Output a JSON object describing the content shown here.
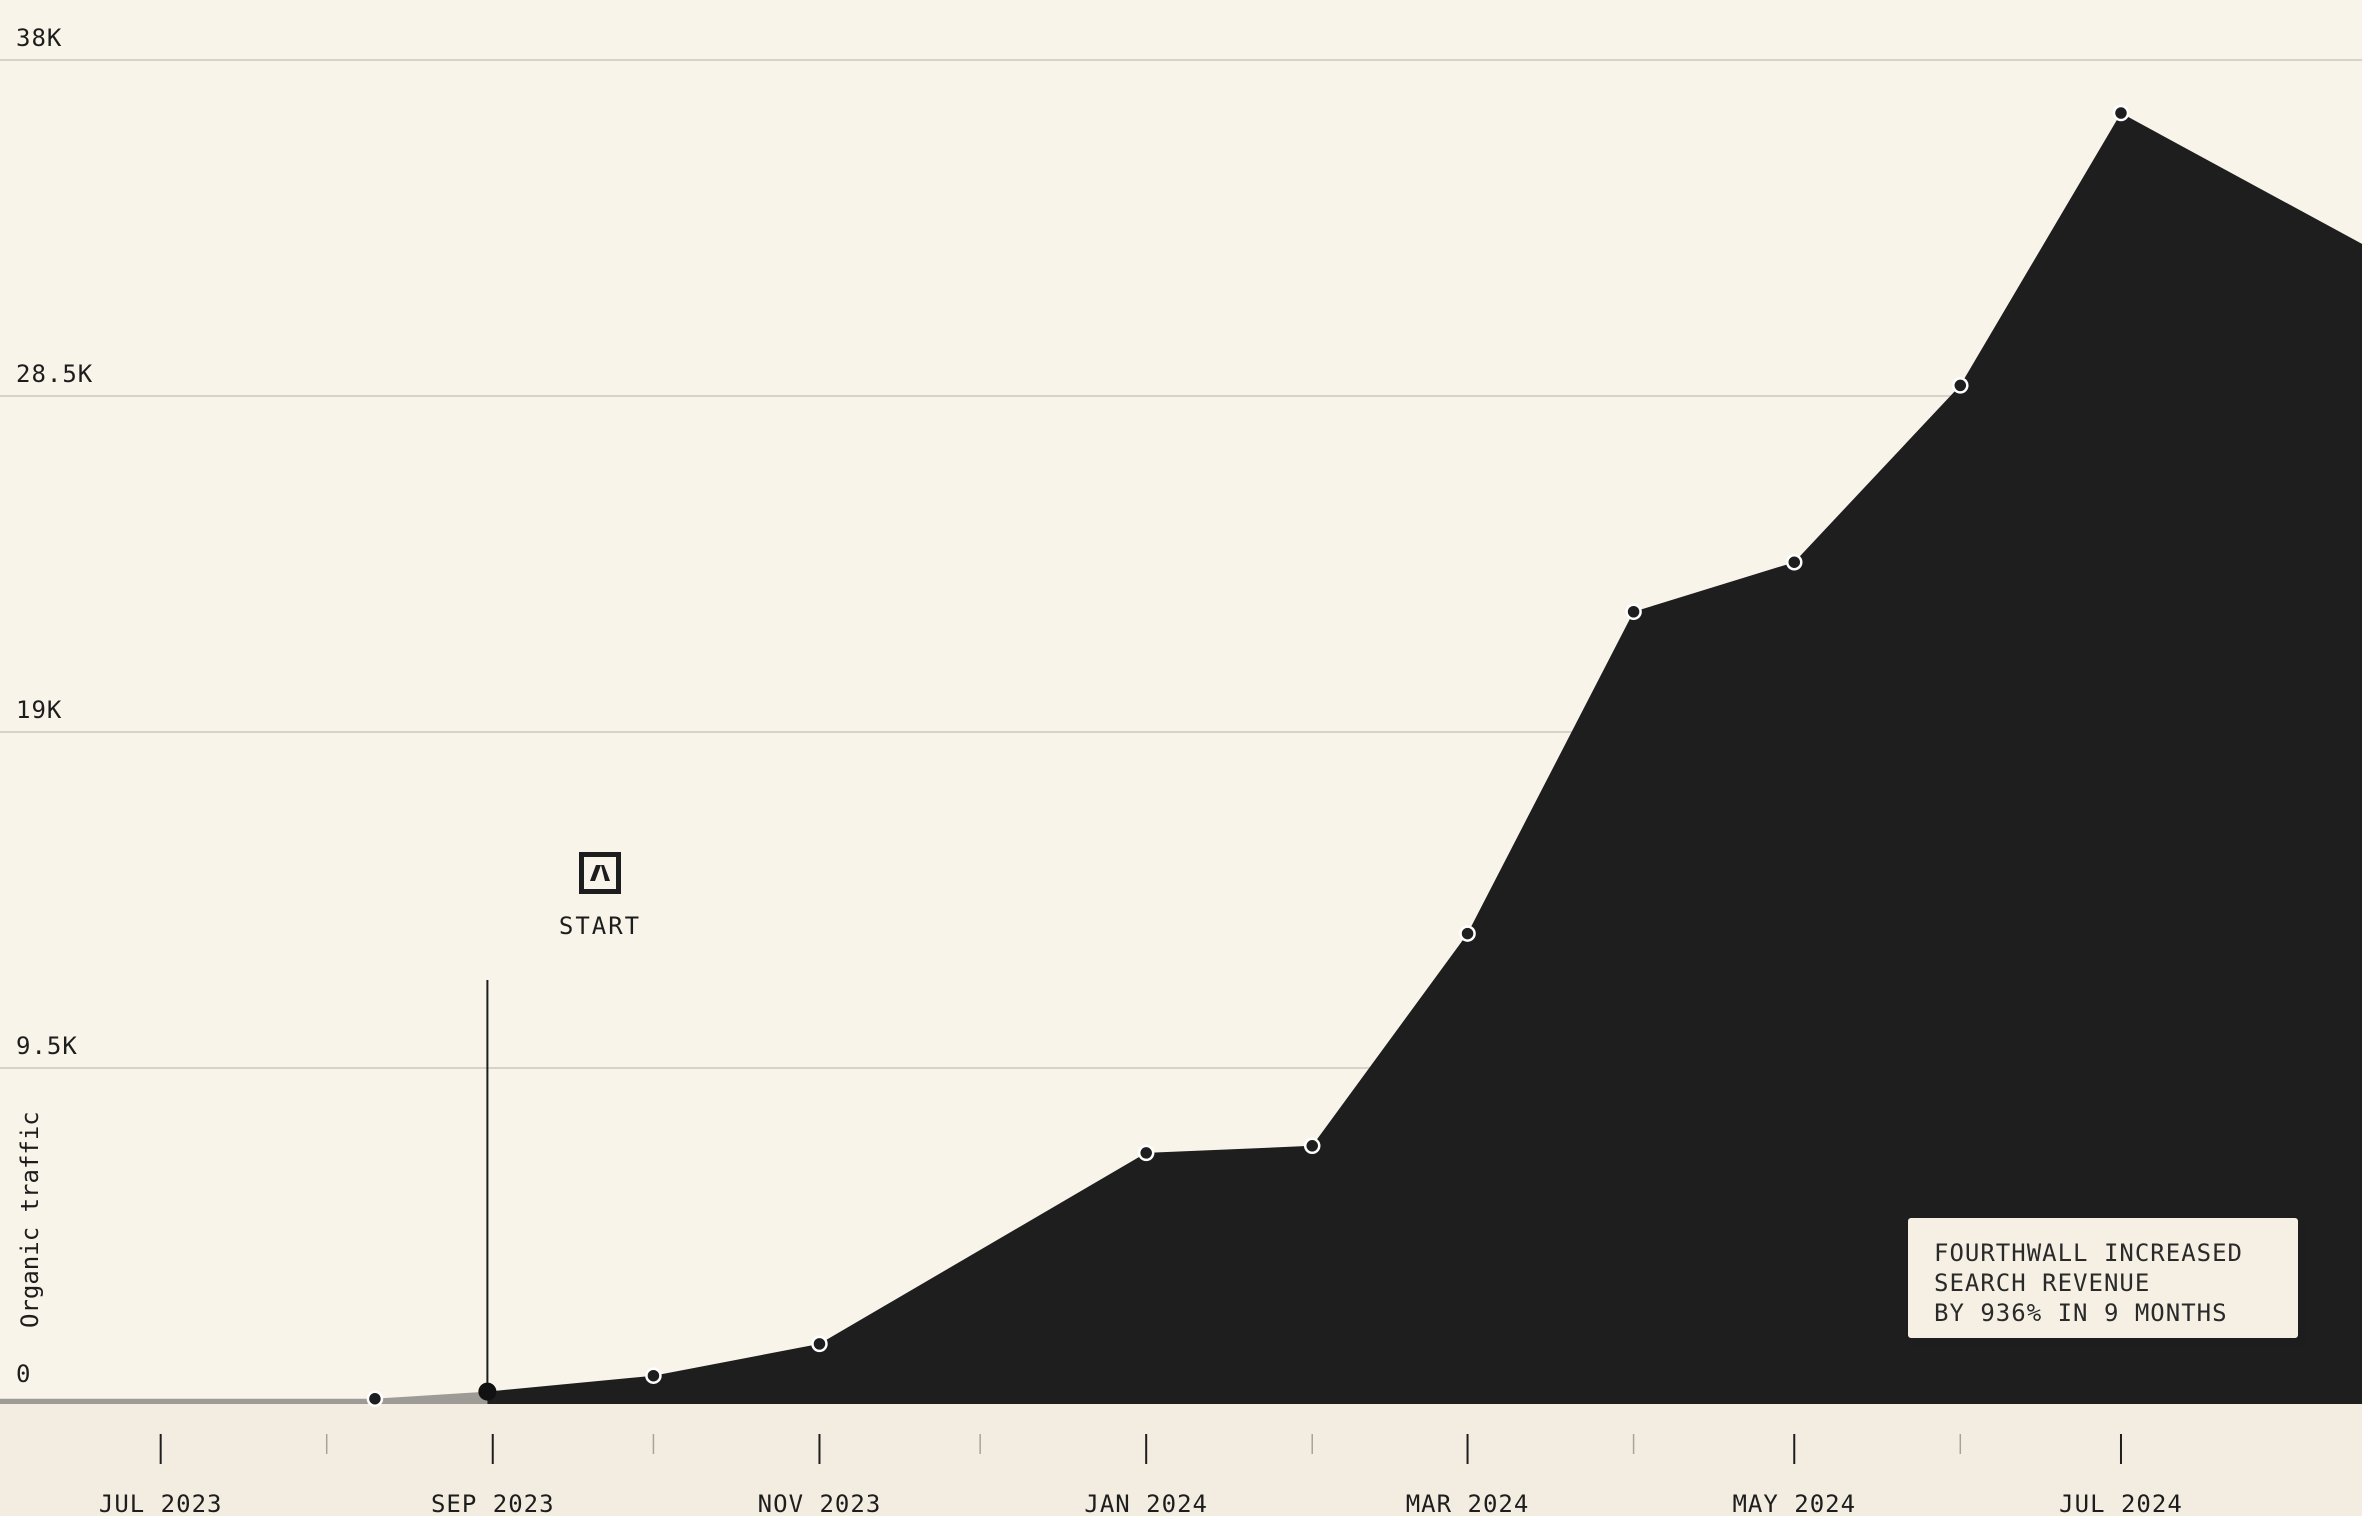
{
  "chart_data": {
    "type": "area",
    "ylabel": "Organic traffic",
    "ylim": [
      0,
      38000
    ],
    "y_ticks": [
      0,
      9500,
      19000,
      28500,
      38000
    ],
    "y_tick_labels": [
      "0",
      "9.5K",
      "19K",
      "28.5K",
      "38K"
    ],
    "x_range": [
      "2023-06-01",
      "2024-08-15"
    ],
    "x_ticks": [
      "2023-07-01",
      "2023-09-01",
      "2023-11-01",
      "2024-01-01",
      "2024-03-01",
      "2024-05-01",
      "2024-07-01"
    ],
    "x_tick_labels": [
      "JUL 2023",
      "SEP 2023",
      "NOV 2023",
      "JAN 2024",
      "MAR 2024",
      "MAY 2024",
      "JUL 2024"
    ],
    "series": [
      {
        "values": [
          {
            "x": "2023-06-01",
            "y": 150
          },
          {
            "x": "2023-08-10",
            "y": 150
          },
          {
            "x": "2023-08-31",
            "y": 350
          },
          {
            "x": "2023-10-01",
            "y": 800
          },
          {
            "x": "2023-11-01",
            "y": 1700
          },
          {
            "x": "2024-01-01",
            "y": 7100
          },
          {
            "x": "2024-02-01",
            "y": 7300
          },
          {
            "x": "2024-03-01",
            "y": 13300
          },
          {
            "x": "2024-04-01",
            "y": 22400
          },
          {
            "x": "2024-05-01",
            "y": 23800
          },
          {
            "x": "2024-06-01",
            "y": 28800
          },
          {
            "x": "2024-07-01",
            "y": 36500
          },
          {
            "x": "2024-08-15",
            "y": 32800
          }
        ]
      }
    ],
    "markers": [
      "2023-08-10",
      "2023-10-01",
      "2023-11-01",
      "2024-01-01",
      "2024-02-01",
      "2024-03-01",
      "2024-04-01",
      "2024-05-01",
      "2024-06-01",
      "2024-07-01"
    ],
    "start_marker": {
      "x": "2023-08-31",
      "label": "START"
    },
    "annotation": [
      "FOURTHWALL INCREASED",
      "SEARCH REVENUE",
      "BY 936% IN 9 MONTHS"
    ],
    "colors": {
      "background": "#f9f4ea",
      "axis_band": "#f3ede1",
      "area": "#1e1e1e",
      "pre_start_area": "#9e9b96",
      "grid": "#d8d3ca",
      "marker_stroke": "#ffffff"
    },
    "grid": true
  },
  "icons": {
    "start_logo": "brand-logo-icon"
  }
}
